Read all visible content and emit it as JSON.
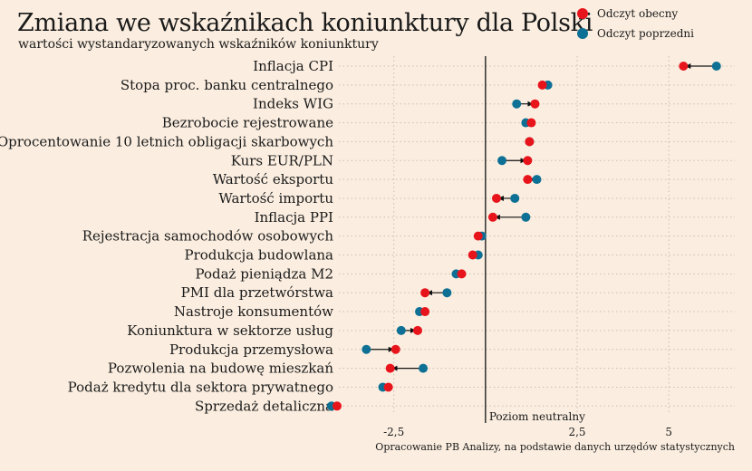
{
  "chart_data": {
    "type": "scatter",
    "title": "Zmiana we wskaźnikach koniunktury dla Polski",
    "subtitle": "wartości wystandaryzowanych wskaźników koniunktury",
    "xlim": [
      -4.0,
      6.8
    ],
    "xticks": [
      -2.5,
      2.5,
      5
    ],
    "xtick_labels": [
      "-2,5",
      "2,5",
      "5"
    ],
    "reference_line": {
      "x": 0,
      "label": "Poziom neutralny"
    },
    "grid": true,
    "legend_position": "top-right",
    "categories": [
      "Inflacja CPI",
      "Stopa proc. banku centralnego",
      "Indeks WIG",
      "Bezrobocie rejestrowane",
      "Oprocentowanie 10 letnich obligacji skarbowych",
      "Kurs EUR/PLN",
      "Wartość eksportu",
      "Wartość importu",
      "Inflacja PPI",
      "Rejestracja samochodów osobowych",
      "Produkcja budowlana",
      "Podaż pieniądza M2",
      "PMI dla przetwórstwa",
      "Nastroje konsumentów",
      "Koniunktura w sektorze usług",
      "Produkcja przemysłowa",
      "Pozwolenia na budowę mieszkań",
      "Podaż kredytu dla sektora prywatnego",
      "Sprzedaż detaliczna"
    ],
    "series": [
      {
        "name": "Odczyt obecny",
        "color": "#e8141c",
        "values": [
          5.4,
          1.55,
          1.35,
          1.25,
          1.2,
          1.15,
          1.15,
          0.3,
          0.2,
          -0.2,
          -0.35,
          -0.65,
          -1.65,
          -1.65,
          -1.85,
          -2.45,
          -2.6,
          -2.65,
          -4.05
        ]
      },
      {
        "name": "Odczyt poprzedni",
        "color": "#0e7094",
        "values": [
          6.3,
          1.7,
          0.85,
          1.1,
          1.2,
          0.45,
          1.4,
          0.8,
          1.1,
          -0.1,
          -0.2,
          -0.8,
          -1.05,
          -1.8,
          -2.3,
          -3.25,
          -1.7,
          -2.8,
          -4.2
        ]
      }
    ]
  },
  "footer": {
    "caption": "Opracowanie PB Analizy, na podstawie danych urzędów statystycznych"
  }
}
